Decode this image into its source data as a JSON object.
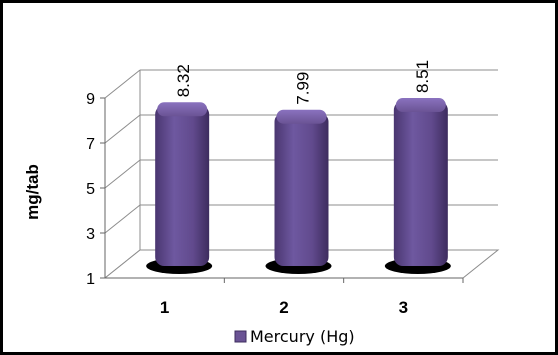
{
  "chart_data": {
    "type": "bar",
    "categories": [
      "1",
      "2",
      "3"
    ],
    "series": [
      {
        "name": "Mercury (Hg)",
        "values": [
          8.32,
          7.99,
          8.51
        ]
      }
    ],
    "data_labels": [
      "8.32",
      "7.99",
      "8.51"
    ],
    "ylabel": "mg/tab",
    "xlabel": "",
    "ylim": [
      1,
      9
    ],
    "yticks": [
      "1",
      "3",
      "5",
      "7",
      "9"
    ],
    "grid": true,
    "legend_position": "bottom",
    "bar_color": "#6a5394",
    "style": "3d-rounded-column"
  }
}
